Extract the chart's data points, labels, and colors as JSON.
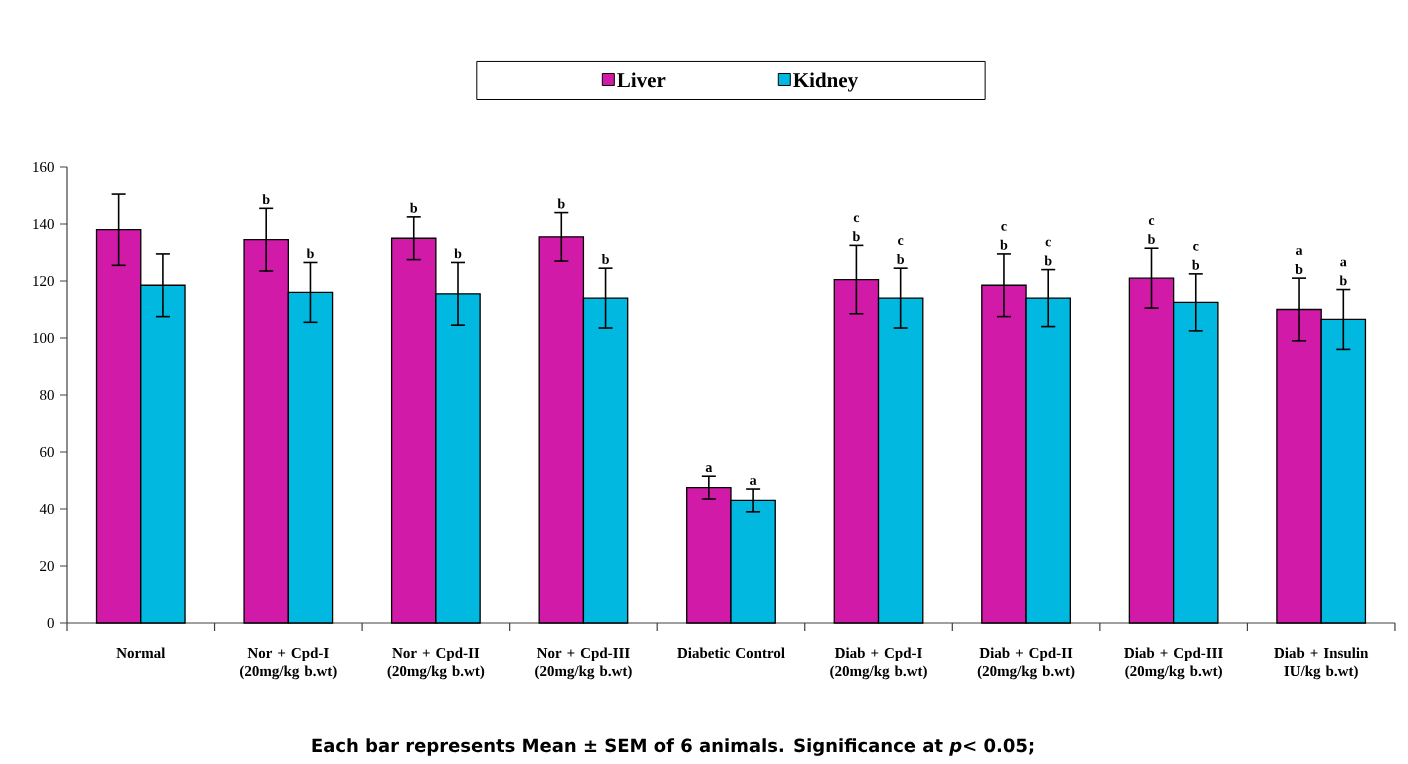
{
  "chart_data": {
    "type": "bar",
    "categories": [
      "Normal",
      "Nor + Cpd-I (20mg/kg b.wt)",
      "Nor + Cpd-II (20mg/kg b.wt)",
      "Nor + Cpd-III (20mg/kg b.wt)",
      "Diabetic Control",
      "Diab + Cpd-I (20mg/kg b.wt)",
      "Diab + Cpd-II (20mg/kg b.wt)",
      "Diab + Cpd-III (20mg/kg b.wt)",
      "Diab + Insulin IU/kg b.wt)"
    ],
    "series": [
      {
        "name": "Liver",
        "color": "#d21aa8",
        "values": [
          138,
          134.5,
          135,
          135.5,
          47.5,
          120.5,
          118.5,
          121,
          110
        ],
        "errors": [
          12.5,
          11,
          7.5,
          8.5,
          4,
          12,
          11,
          10.5,
          11
        ],
        "value_labels": [
          null,
          "b",
          "b",
          "b",
          "a",
          "c b",
          "c b",
          "c b",
          "a b"
        ]
      },
      {
        "name": "Kidney",
        "color": "#00b8e0",
        "values": [
          118.5,
          116,
          115.5,
          114,
          43,
          114,
          114,
          112.5,
          106.5
        ],
        "errors": [
          11,
          10.5,
          11,
          10.5,
          4,
          10.5,
          10,
          10,
          10.5
        ],
        "value_labels": [
          null,
          "b",
          "b",
          "b",
          "a",
          "c b",
          "c b",
          "c b",
          "a b"
        ]
      }
    ],
    "ylim": [
      0,
      160
    ],
    "yticks": [
      0,
      20,
      40,
      60,
      80,
      100,
      120,
      140,
      160
    ],
    "legend": "top",
    "annotations": [
      "Each bar represents Mean ± SEM of 6 animals. Significance at *p*< 0.05;"
    ]
  }
}
